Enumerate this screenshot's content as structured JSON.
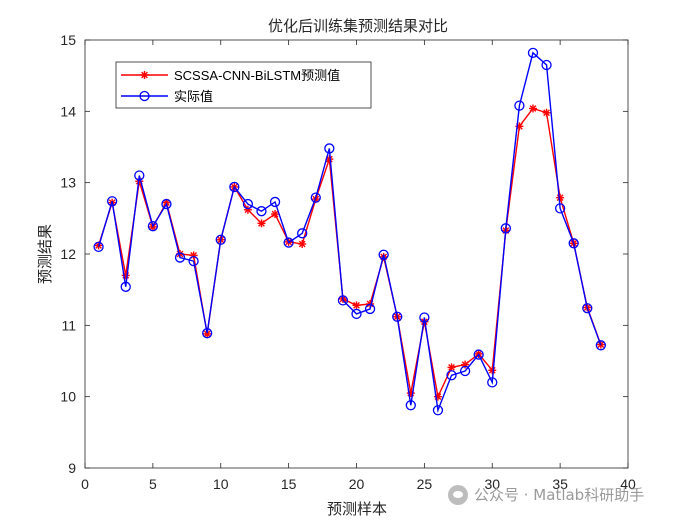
{
  "chart_data": {
    "type": "line",
    "title": "优化后训练集预测结果对比",
    "xlabel": "预测样本",
    "ylabel": "预测结果",
    "xlim": [
      0,
      40
    ],
    "ylim": [
      9,
      15
    ],
    "xticks": [
      0,
      5,
      10,
      15,
      20,
      25,
      30,
      35,
      40
    ],
    "yticks": [
      9,
      10,
      11,
      12,
      13,
      14,
      15
    ],
    "grid": false,
    "legend_position": "top-left",
    "x": [
      1,
      2,
      3,
      4,
      5,
      6,
      7,
      8,
      9,
      10,
      11,
      12,
      13,
      14,
      15,
      16,
      17,
      18,
      19,
      20,
      21,
      22,
      23,
      24,
      25,
      26,
      27,
      28,
      29,
      30,
      31,
      32,
      33,
      34,
      35,
      36,
      37,
      38
    ],
    "series": [
      {
        "name": "SCSSA-CNN-BiLSTM预测值",
        "color": "#ff0000",
        "marker": "asterisk",
        "values": [
          12.12,
          12.72,
          11.7,
          13.02,
          12.38,
          12.72,
          12.0,
          11.98,
          10.88,
          12.2,
          12.94,
          12.62,
          12.43,
          12.56,
          12.17,
          12.14,
          12.77,
          13.33,
          11.37,
          11.28,
          11.3,
          11.96,
          11.12,
          10.05,
          11.05,
          10.0,
          10.41,
          10.45,
          10.6,
          10.37,
          12.33,
          13.79,
          14.04,
          13.98,
          12.79,
          12.15,
          11.25,
          10.73
        ]
      },
      {
        "name": "实际值",
        "color": "#0000ff",
        "marker": "circle",
        "values": [
          12.1,
          12.74,
          11.54,
          13.1,
          12.39,
          12.7,
          11.95,
          11.9,
          10.89,
          12.2,
          12.94,
          12.7,
          12.6,
          12.73,
          12.16,
          12.29,
          12.79,
          13.48,
          11.35,
          11.16,
          11.23,
          11.99,
          11.12,
          9.88,
          11.11,
          9.81,
          10.3,
          10.36,
          10.59,
          10.2,
          12.36,
          14.08,
          14.82,
          14.65,
          12.64,
          12.15,
          11.24,
          10.72
        ]
      }
    ]
  },
  "watermark": {
    "text": "公众号 · Matlab科研助手",
    "icon": "wechat-icon"
  }
}
